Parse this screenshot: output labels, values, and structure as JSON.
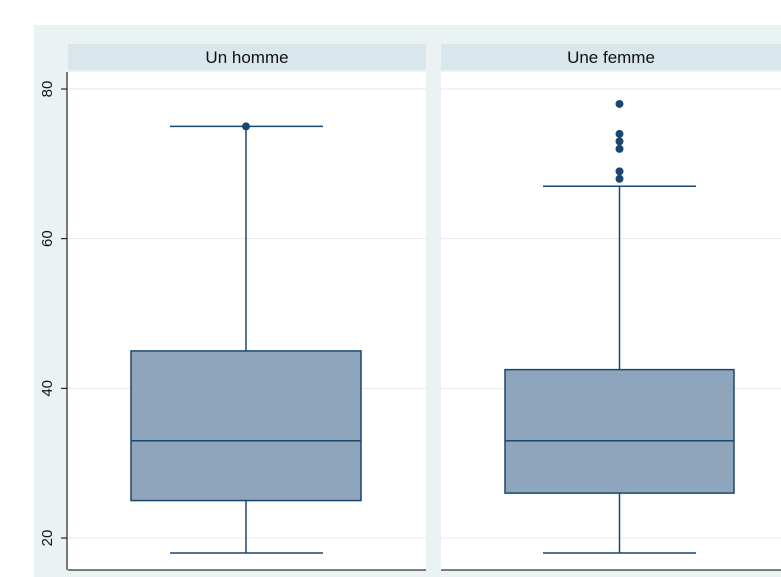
{
  "colors": {
    "outer_background": "#eaf2f3",
    "panel_background": "#ffffff",
    "strip_background": "#d9e6eb",
    "box_fill": "#8ea5bb",
    "box_stroke": "#1a476f",
    "outlier": "#1a476f",
    "grid": "#eaeaea",
    "axis": "#000000"
  },
  "chart_data": {
    "type": "box",
    "ylim": [
      18,
      82
    ],
    "yticks": [
      20,
      40,
      60,
      80
    ],
    "grid": true,
    "panels": [
      {
        "title": "Un homme",
        "whisker_low": 18,
        "q1": 25,
        "median": 33,
        "q3": 45,
        "whisker_high": 75,
        "outliers": [
          75
        ]
      },
      {
        "title": "Une femme",
        "whisker_low": 18,
        "q1": 26,
        "median": 33,
        "q3": 42.5,
        "whisker_high": 67,
        "outliers": [
          68,
          69,
          72,
          73,
          74,
          78
        ]
      }
    ]
  }
}
